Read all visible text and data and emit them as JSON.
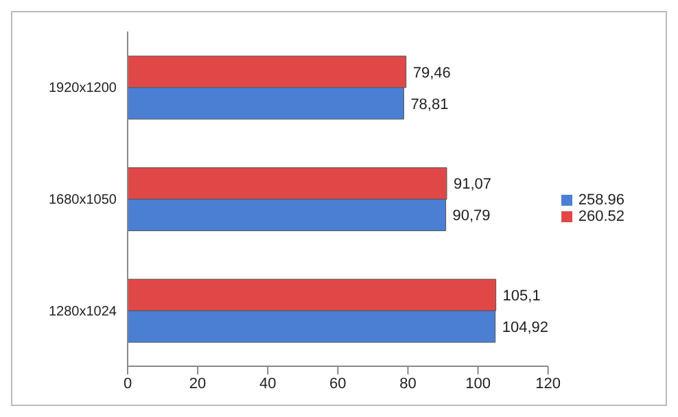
{
  "chart_data": {
    "type": "bar",
    "orientation": "horizontal",
    "categories": [
      "1920x1200",
      "1680x1050",
      "1280x1024"
    ],
    "series": [
      {
        "name": "260.52",
        "color": "#e04848",
        "values": [
          79.46,
          91.07,
          105.1
        ],
        "value_labels": [
          "79,46",
          "91,07",
          "105,1"
        ]
      },
      {
        "name": "258.96",
        "color": "#4a7fd4",
        "values": [
          78.81,
          90.79,
          104.92
        ],
        "value_labels": [
          "78,81",
          "90,79",
          "104,92"
        ]
      }
    ],
    "xlim": [
      0,
      120
    ],
    "xticks": [
      0,
      20,
      40,
      60,
      80,
      100,
      120
    ],
    "grid": false,
    "legend": "right"
  }
}
